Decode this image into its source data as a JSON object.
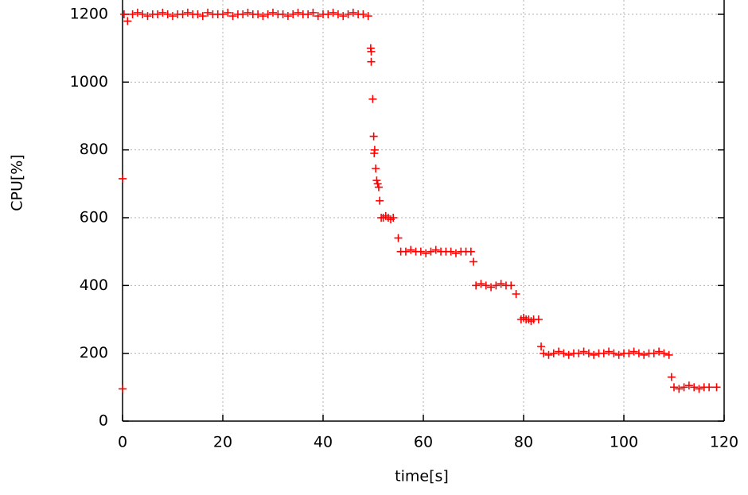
{
  "chart_data": {
    "type": "scatter",
    "x_label": "time[s]",
    "y_label": "CPU[%]",
    "xlim": [
      0,
      120
    ],
    "ylim": [
      0,
      1200
    ],
    "xticks": [
      0,
      20,
      40,
      60,
      80,
      100,
      120
    ],
    "yticks": [
      0,
      200,
      400,
      600,
      800,
      1000,
      1200
    ],
    "grid": true,
    "series": [
      {
        "color": "#ff0000",
        "x": [
          0,
          0,
          0.3,
          1,
          2,
          3,
          4,
          5,
          6,
          7,
          8,
          9,
          10,
          11,
          12,
          13,
          14,
          15,
          16,
          17,
          18,
          19,
          20,
          21,
          22,
          23,
          24,
          25,
          26,
          27,
          28,
          29,
          30,
          31,
          32,
          33,
          34,
          35,
          36,
          37,
          38,
          39,
          40,
          41,
          42,
          43,
          44,
          45,
          46,
          47,
          48,
          49,
          49.5,
          49.6,
          49.6,
          49.9,
          50.1,
          50.3,
          50.2,
          50.5,
          50.7,
          50.9,
          51.1,
          51.3,
          51.6,
          52,
          52.5,
          53,
          53.5,
          54,
          55,
          55.5,
          56.5,
          57.5,
          58.5,
          59.5,
          60.5,
          61.5,
          62.5,
          63.5,
          64.5,
          65.5,
          66.5,
          67.5,
          68.5,
          69.5,
          70,
          70.5,
          71.5,
          72.5,
          73.5,
          74.5,
          75.5,
          76.5,
          77.5,
          78.5,
          79.5,
          80,
          80.5,
          81,
          81.5,
          82,
          83,
          83.5,
          84,
          85,
          86,
          87,
          88,
          89,
          90,
          91,
          92,
          93,
          94,
          95,
          96,
          97,
          98,
          99,
          100,
          101,
          102,
          103,
          104,
          105,
          106,
          107,
          108,
          109,
          109.5,
          110,
          111,
          112,
          113,
          114,
          115,
          116,
          117,
          118.5
        ],
        "values": [
          95,
          715,
          1200,
          1180,
          1200,
          1205,
          1200,
          1195,
          1200,
          1200,
          1205,
          1200,
          1195,
          1200,
          1200,
          1205,
          1200,
          1200,
          1195,
          1205,
          1200,
          1200,
          1200,
          1205,
          1195,
          1200,
          1200,
          1205,
          1200,
          1200,
          1195,
          1200,
          1205,
          1200,
          1200,
          1195,
          1200,
          1205,
          1200,
          1200,
          1205,
          1195,
          1200,
          1200,
          1205,
          1200,
          1195,
          1200,
          1205,
          1200,
          1200,
          1195,
          1100,
          1090,
          1060,
          950,
          840,
          800,
          790,
          745,
          710,
          700,
          690,
          650,
          600,
          600,
          605,
          600,
          595,
          600,
          540,
          500,
          500,
          505,
          500,
          500,
          495,
          500,
          505,
          500,
          500,
          500,
          495,
          500,
          500,
          500,
          470,
          400,
          405,
          400,
          395,
          400,
          405,
          400,
          400,
          375,
          300,
          305,
          300,
          300,
          295,
          300,
          300,
          220,
          200,
          195,
          200,
          205,
          200,
          195,
          200,
          200,
          205,
          200,
          195,
          200,
          200,
          205,
          200,
          195,
          200,
          200,
          205,
          200,
          195,
          200,
          200,
          205,
          200,
          195,
          130,
          100,
          95,
          100,
          105,
          100,
          95,
          100,
          100,
          100
        ]
      }
    ]
  }
}
